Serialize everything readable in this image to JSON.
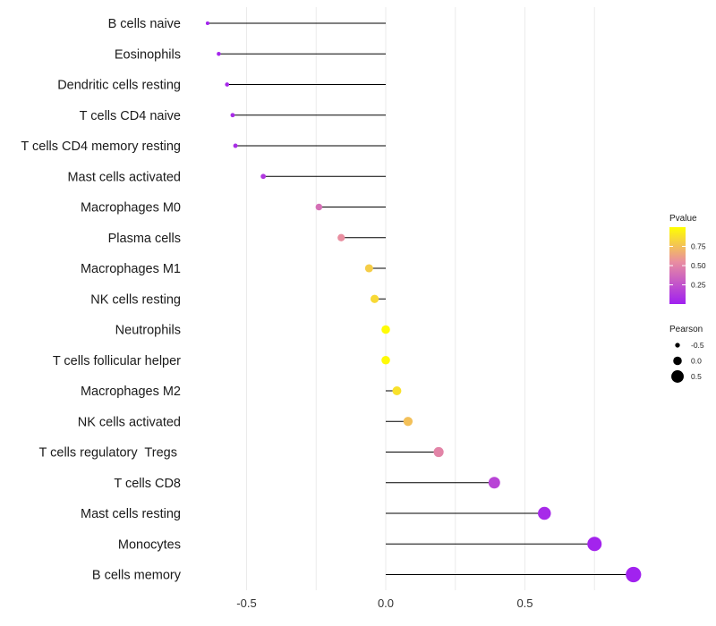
{
  "chart_data": {
    "type": "lollipop",
    "title": "",
    "xlabel": "",
    "ylabel": "",
    "xlim": [
      -0.75,
      0.9
    ],
    "xticks": [
      -0.5,
      0.0,
      0.5
    ],
    "xtick_labels": [
      "-0.5",
      "0.0",
      "0.5"
    ],
    "categories": [
      "B cells naive",
      "Eosinophils",
      "Dendritic cells resting",
      "T cells CD4 naive",
      "T cells CD4 memory resting",
      "Mast cells activated",
      "Macrophages M0",
      "Plasma cells",
      "Macrophages M1",
      "NK cells resting",
      "Neutrophils",
      "T cells follicular helper",
      "Macrophages M2",
      "NK cells activated",
      "T cells regulatory  Tregs ",
      "T cells CD8",
      "Mast cells resting",
      "Monocytes",
      "B cells memory"
    ],
    "series": [
      {
        "name": "Pearson",
        "values": [
          -0.64,
          -0.6,
          -0.57,
          -0.55,
          -0.54,
          -0.44,
          -0.24,
          -0.16,
          -0.06,
          -0.04,
          0.0,
          0.0,
          0.04,
          0.08,
          0.19,
          0.39,
          0.57,
          0.75,
          0.89
        ]
      },
      {
        "name": "Pvalue",
        "values": [
          0.02,
          0.03,
          0.05,
          0.06,
          0.07,
          0.12,
          0.4,
          0.55,
          0.8,
          0.85,
          0.99,
          0.98,
          0.88,
          0.75,
          0.5,
          0.18,
          0.05,
          0.02,
          0.01
        ]
      }
    ],
    "legend": {
      "position": "right",
      "color_title": "Pvalue",
      "color_ticks": [
        0.25,
        0.5,
        0.75
      ],
      "color_tick_labels": [
        "0.25",
        "0.50",
        "0.75"
      ],
      "color_range": [
        0.0,
        1.0
      ],
      "color_low": "#a020f0",
      "color_high": "#ffff00",
      "size_title": "Pearson",
      "size_values": [
        -0.5,
        0.0,
        0.5
      ],
      "size_labels": [
        "-0.5",
        "0.0",
        "0.5"
      ]
    },
    "grid": true
  }
}
